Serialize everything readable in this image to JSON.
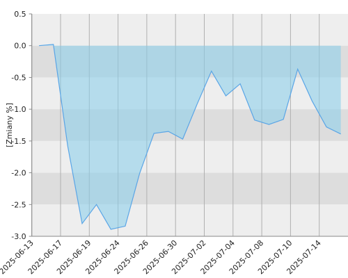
{
  "chart_data": {
    "type": "area",
    "y_label": "[Zmiany %]",
    "categories": [
      "2025-06-13",
      null,
      "2025-06-17",
      null,
      "2025-06-19",
      null,
      "2025-06-24",
      null,
      "2025-06-26",
      null,
      "2025-06-30",
      null,
      "2025-07-02",
      null,
      "2025-07-04",
      null,
      "2025-07-08",
      null,
      "2025-07-10",
      null,
      "2025-07-14",
      null
    ],
    "values": [
      0.0,
      0.02,
      -1.58,
      -2.8,
      -2.5,
      -2.89,
      -2.84,
      -2.01,
      -1.38,
      -1.35,
      -1.47,
      -0.92,
      -0.4,
      -0.79,
      -0.6,
      -1.17,
      -1.24,
      -1.16,
      -0.37,
      -0.87,
      -1.28,
      -1.39
    ],
    "color": "#5aa5e6",
    "fill": "rgba(135, 206, 235, 0.55)",
    "ylim": [
      -3.0,
      0.5
    ],
    "yticks": [
      0.5,
      {
        "value": 0,
        "label": "0.0"
      },
      -0.5,
      {
        "value": -1,
        "label": "-1.0"
      },
      -1.5,
      {
        "value": -2,
        "label": "-2.0"
      },
      -2.5,
      {
        "value": -3,
        "label": "-3.0"
      }
    ],
    "grid": true
  }
}
